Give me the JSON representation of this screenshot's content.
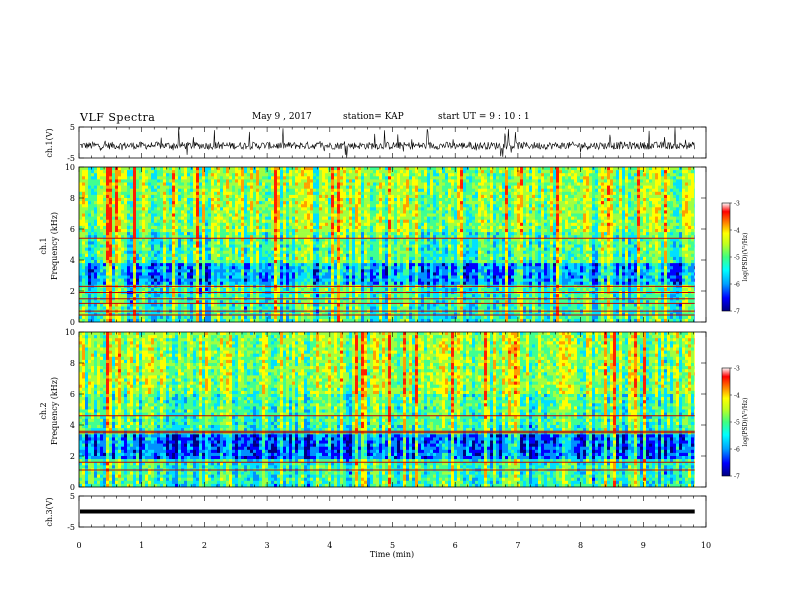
{
  "header": {
    "title": "VLF Spectra",
    "date": "May 9 , 2017",
    "station": "station= KAP",
    "start": "start UT = 9 : 10 : 1"
  },
  "chart_data": [
    {
      "type": "line",
      "panel": "ch1-waveform",
      "ylabel": "ch.1(V)",
      "ylim": [
        -5,
        5
      ],
      "yticks": [
        "5",
        "-5"
      ],
      "xlim": [
        0,
        10
      ],
      "x_extent_min": 9.82,
      "description_values": "noisy waveform around -1 V with spikes to ±5 V"
    },
    {
      "type": "heatmap",
      "panel": "ch1-spectrogram",
      "ylabel": "ch.1\nFrequency (kHz)",
      "ylabel_line1": "ch.1",
      "ylabel_line2": "Frequency (kHz)",
      "ylim": [
        0,
        10
      ],
      "yticks": [
        "0",
        "2",
        "4",
        "6",
        "8",
        "10"
      ],
      "xlim": [
        0,
        10
      ],
      "horizontal_lines_khz": [
        5.4,
        2.3,
        1.9,
        1.5,
        1.2,
        0.7,
        0.45
      ],
      "colorbar": {
        "label": "log(PSD)(V²/Hz)",
        "range": [
          -7,
          -3
        ],
        "ticks": [
          "-3",
          "-4",
          "-5",
          "-6",
          "-7"
        ]
      }
    },
    {
      "type": "heatmap",
      "panel": "ch2-spectrogram",
      "ylabel_line1": "ch.2",
      "ylabel_line2": "Frequency (kHz)",
      "ylim": [
        0,
        10
      ],
      "yticks": [
        "0",
        "2",
        "4",
        "6",
        "8",
        "10"
      ],
      "xlim": [
        0,
        10
      ],
      "horizontal_lines_khz": [
        4.6,
        3.6,
        3.5,
        1.6,
        1.1
      ],
      "colorbar": {
        "label": "log(PSD)(V²/Hz)",
        "range": [
          -7,
          -3
        ],
        "ticks": [
          "-3",
          "-4",
          "-5",
          "-6",
          "-7"
        ]
      }
    },
    {
      "type": "line",
      "panel": "ch3-waveform",
      "ylabel": "ch.3(V)",
      "ylim": [
        -5,
        5
      ],
      "yticks": [
        "5",
        "-5"
      ],
      "xlim": [
        0,
        10
      ],
      "constant_value": 0,
      "x_extent_min": 9.82
    }
  ],
  "xaxis": {
    "label": "Time (min)",
    "ticks": [
      "0",
      "1",
      "2",
      "3",
      "4",
      "5",
      "6",
      "7",
      "8",
      "9",
      "10"
    ]
  },
  "colors": {
    "colormap": [
      "#000080",
      "#0000ff",
      "#00a0ff",
      "#00ffff",
      "#40ff80",
      "#a0ff40",
      "#ffff00",
      "#ff8000",
      "#ff0000",
      "#ffffff"
    ]
  }
}
